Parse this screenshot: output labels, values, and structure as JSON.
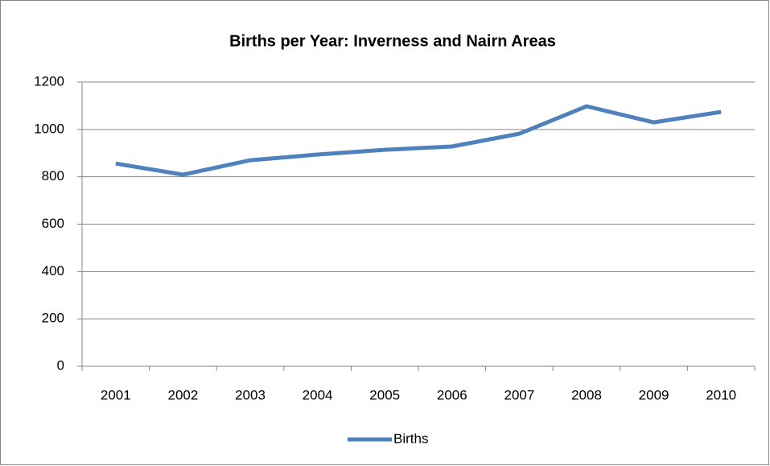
{
  "chart_data": {
    "type": "line",
    "title": "Births per Year: Inverness and Nairn Areas",
    "categories": [
      "2001",
      "2002",
      "2003",
      "2004",
      "2005",
      "2006",
      "2007",
      "2008",
      "2009",
      "2010"
    ],
    "series": [
      {
        "name": "Births",
        "color": "#4f81bd",
        "values": [
          856,
          809,
          870,
          894,
          914,
          928,
          982,
          1098,
          1030,
          1074
        ]
      }
    ],
    "ylim": [
      0,
      1200
    ],
    "yticks": [
      0,
      200,
      400,
      600,
      800,
      1000,
      1200
    ],
    "grid": true,
    "legend": "bottom"
  }
}
